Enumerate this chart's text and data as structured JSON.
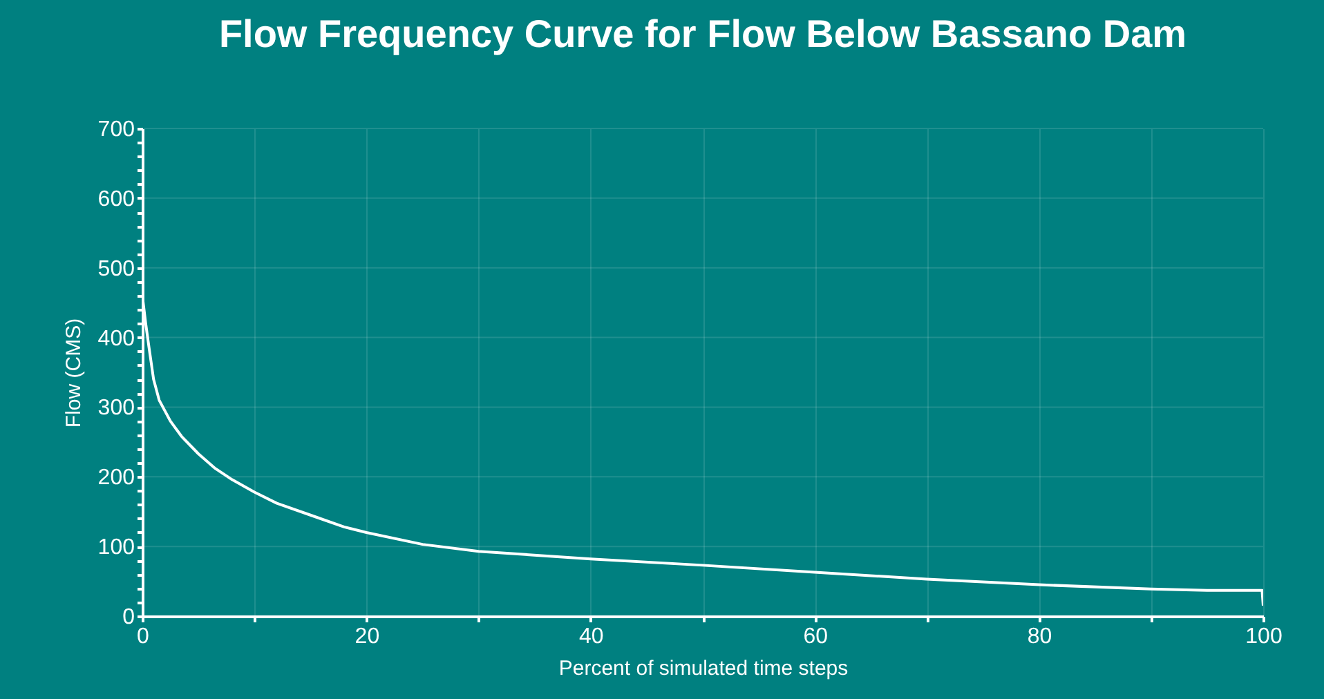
{
  "chart_data": {
    "type": "line",
    "title": "Flow Frequency Curve for Flow Below Bassano Dam",
    "xlabel": "Percent of simulated time steps",
    "ylabel": "Flow (CMS)",
    "x": [
      0,
      0.3,
      0.6,
      1,
      1.5,
      2.5,
      3.5,
      5,
      6.5,
      8,
      10,
      12,
      15,
      18,
      20,
      25,
      30,
      40,
      50,
      60,
      70,
      80,
      90,
      95,
      99.9,
      100
    ],
    "series": [
      {
        "color": "#ffffff",
        "values": [
          460,
          420,
          385,
          340,
          310,
          280,
          258,
          233,
          212,
          196,
          178,
          162,
          145,
          128,
          120,
          103,
          93,
          82,
          73,
          63,
          53,
          45,
          39,
          37,
          37,
          15
        ]
      }
    ],
    "xlim": [
      0,
      100
    ],
    "xticks": [
      0,
      {
        "value": 10,
        "label": null
      },
      20,
      {
        "value": 30,
        "label": null
      },
      40,
      {
        "value": 50,
        "label": null
      },
      60,
      {
        "value": 70,
        "label": null
      },
      80,
      {
        "value": 90,
        "label": null
      },
      100
    ],
    "ylim": [
      0,
      700
    ],
    "yticks": [
      0,
      {
        "value": 20,
        "label": null
      },
      {
        "value": 40,
        "label": null
      },
      {
        "value": 60,
        "label": null
      },
      {
        "value": 80,
        "label": null
      },
      100,
      {
        "value": 120,
        "label": null
      },
      {
        "value": 140,
        "label": null
      },
      {
        "value": 160,
        "label": null
      },
      {
        "value": 180,
        "label": null
      },
      200,
      {
        "value": 220,
        "label": null
      },
      {
        "value": 240,
        "label": null
      },
      {
        "value": 260,
        "label": null
      },
      {
        "value": 280,
        "label": null
      },
      300,
      {
        "value": 320,
        "label": null
      },
      {
        "value": 340,
        "label": null
      },
      {
        "value": 360,
        "label": null
      },
      {
        "value": 380,
        "label": null
      },
      400,
      {
        "value": 420,
        "label": null
      },
      {
        "value": 440,
        "label": null
      },
      {
        "value": 460,
        "label": null
      },
      {
        "value": 480,
        "label": null
      },
      500,
      {
        "value": 520,
        "label": null
      },
      {
        "value": 540,
        "label": null
      },
      {
        "value": 560,
        "label": null
      },
      {
        "value": 580,
        "label": null
      },
      600,
      {
        "value": 620,
        "label": null
      },
      {
        "value": 640,
        "label": null
      },
      {
        "value": 660,
        "label": null
      },
      {
        "value": 680,
        "label": null
      },
      700
    ],
    "grid": true,
    "line_style": "solid",
    "marker": "none"
  }
}
